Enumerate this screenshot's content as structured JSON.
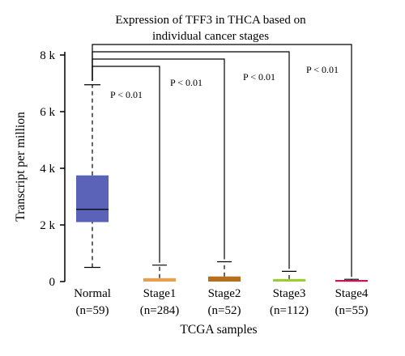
{
  "chart_data": {
    "type": "box",
    "title_lines": [
      "Expression of TFF3 in THCA based on",
      "individual cancer stages"
    ],
    "xlabel": "TCGA samples",
    "ylabel": "Transcript per million",
    "ylim": [
      0,
      8000
    ],
    "y_ticks": [
      {
        "value": 0,
        "label": "0"
      },
      {
        "value": 2000,
        "label": "2 k"
      },
      {
        "value": 4000,
        "label": "4 k"
      },
      {
        "value": 6000,
        "label": "6 k"
      },
      {
        "value": 8000,
        "label": "8 k"
      }
    ],
    "categories": [
      {
        "name": "Normal",
        "n": "(n=59)",
        "color": "#5b63b8",
        "min": 500,
        "q1": 2100,
        "median": 2550,
        "q3": 3750,
        "max": 6950
      },
      {
        "name": "Stage1",
        "n": "(n=284)",
        "color": "#e8a04e",
        "min": 0,
        "q1": 0,
        "median": 30,
        "q3": 120,
        "max": 580
      },
      {
        "name": "Stage2",
        "n": "(n=52)",
        "color": "#b5701f",
        "min": 0,
        "q1": 0,
        "median": 40,
        "q3": 180,
        "max": 700
      },
      {
        "name": "Stage3",
        "n": "(n=112)",
        "color": "#9acd32",
        "min": 0,
        "q1": 0,
        "median": 20,
        "q3": 90,
        "max": 360
      },
      {
        "name": "Stage4",
        "n": "(n=55)",
        "color": "#c2185b",
        "min": 0,
        "q1": 0,
        "median": 10,
        "q3": 40,
        "max": 80
      }
    ],
    "comparisons": [
      {
        "from": "Normal",
        "to": "Stage1",
        "label": "P < 0.01"
      },
      {
        "from": "Normal",
        "to": "Stage2",
        "label": "P < 0.01"
      },
      {
        "from": "Normal",
        "to": "Stage3",
        "label": "P < 0.01"
      },
      {
        "from": "Normal",
        "to": "Stage4",
        "label": "P < 0.01"
      }
    ]
  }
}
